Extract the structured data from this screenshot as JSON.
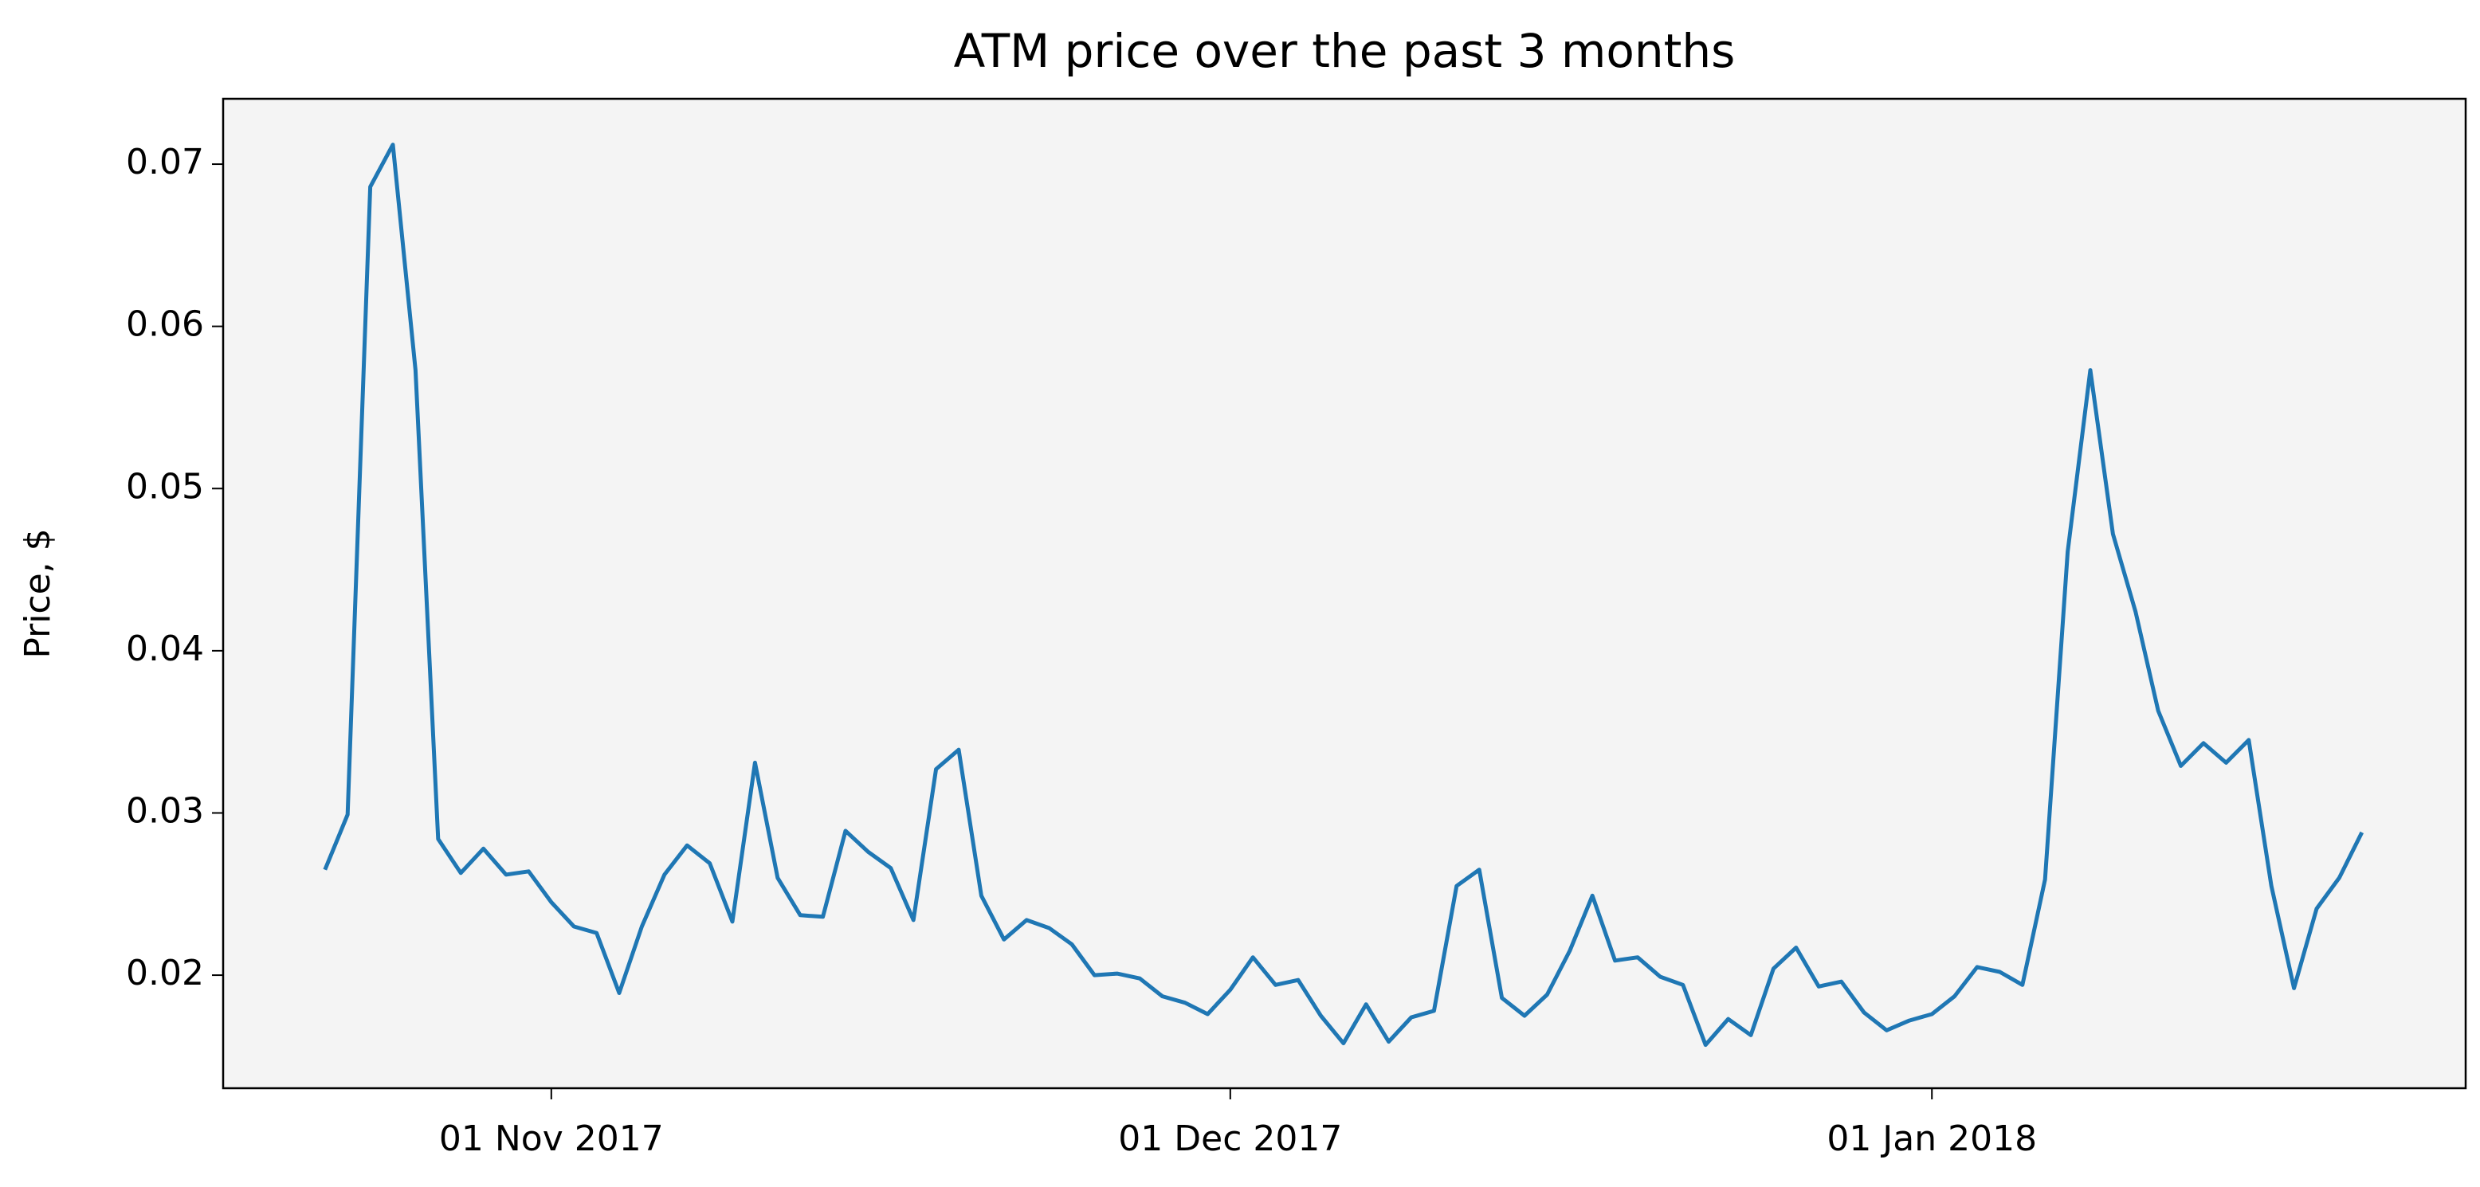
{
  "chart_data": {
    "type": "line",
    "title": "ATM price over the past 3 months",
    "y_label": "Price, $",
    "x": [
      "2017-10-22",
      "2017-10-23",
      "2017-10-24",
      "2017-10-25",
      "2017-10-26",
      "2017-10-27",
      "2017-10-28",
      "2017-10-29",
      "2017-10-30",
      "2017-10-31",
      "2017-11-01",
      "2017-11-02",
      "2017-11-03",
      "2017-11-04",
      "2017-11-05",
      "2017-11-06",
      "2017-11-07",
      "2017-11-08",
      "2017-11-09",
      "2017-11-10",
      "2017-11-11",
      "2017-11-12",
      "2017-11-13",
      "2017-11-14",
      "2017-11-15",
      "2017-11-16",
      "2017-11-17",
      "2017-11-18",
      "2017-11-19",
      "2017-11-20",
      "2017-11-21",
      "2017-11-22",
      "2017-11-23",
      "2017-11-24",
      "2017-11-25",
      "2017-11-26",
      "2017-11-27",
      "2017-11-28",
      "2017-11-29",
      "2017-11-30",
      "2017-12-01",
      "2017-12-02",
      "2017-12-03",
      "2017-12-04",
      "2017-12-05",
      "2017-12-06",
      "2017-12-07",
      "2017-12-08",
      "2017-12-09",
      "2017-12-10",
      "2017-12-11",
      "2017-12-12",
      "2017-12-13",
      "2017-12-14",
      "2017-12-15",
      "2017-12-16",
      "2017-12-17",
      "2017-12-18",
      "2017-12-19",
      "2017-12-20",
      "2017-12-21",
      "2017-12-22",
      "2017-12-23",
      "2017-12-24",
      "2017-12-25",
      "2017-12-26",
      "2017-12-27",
      "2017-12-28",
      "2017-12-29",
      "2017-12-30",
      "2017-12-31",
      "2018-01-01",
      "2018-01-02",
      "2018-01-03",
      "2018-01-04",
      "2018-01-05",
      "2018-01-06",
      "2018-01-07",
      "2018-01-08",
      "2018-01-09",
      "2018-01-10",
      "2018-01-11",
      "2018-01-12",
      "2018-01-13",
      "2018-01-14",
      "2018-01-15",
      "2018-01-16",
      "2018-01-17",
      "2018-01-18",
      "2018-01-19",
      "2018-01-20"
    ],
    "series": [
      {
        "name": "ATM",
        "color": "#1f77b4",
        "values": [
          0.0265,
          0.0299,
          0.0686,
          0.0712,
          0.0573,
          0.0284,
          0.0263,
          0.0278,
          0.0262,
          0.0264,
          0.0245,
          0.023,
          0.0226,
          0.0189,
          0.023,
          0.0262,
          0.028,
          0.0269,
          0.0233,
          0.0331,
          0.026,
          0.0237,
          0.0236,
          0.0289,
          0.0276,
          0.0266,
          0.0234,
          0.0327,
          0.0339,
          0.0249,
          0.0222,
          0.0234,
          0.0229,
          0.0219,
          0.02,
          0.0201,
          0.0198,
          0.0187,
          0.0183,
          0.0176,
          0.0191,
          0.0211,
          0.0194,
          0.0197,
          0.0175,
          0.0158,
          0.0182,
          0.0159,
          0.0174,
          0.0178,
          0.0255,
          0.0265,
          0.0186,
          0.0175,
          0.0188,
          0.0215,
          0.0249,
          0.0209,
          0.0211,
          0.0199,
          0.0194,
          0.0157,
          0.0173,
          0.0163,
          0.0204,
          0.0217,
          0.0193,
          0.0196,
          0.0177,
          0.0166,
          0.0172,
          0.0176,
          0.0187,
          0.0205,
          0.0202,
          0.0194,
          0.0259,
          0.0461,
          0.0573,
          0.0472,
          0.0424,
          0.0363,
          0.0329,
          0.0343,
          0.0331,
          0.0345,
          0.0255,
          0.0192,
          0.0241,
          0.026,
          0.0288
        ]
      }
    ],
    "xlim": [
      "2017-10-17T12:00",
      "2018-01-24T14:00"
    ],
    "xticks": [
      {
        "value": "2017-11-01",
        "label": "01 Nov 2017"
      },
      {
        "value": "2017-12-01",
        "label": "01 Dec 2017"
      },
      {
        "value": "2018-01-01",
        "label": "01 Jan 2018"
      }
    ],
    "ylim": [
      0.01303,
      0.07403
    ],
    "yticks": [
      0.02,
      0.03,
      0.04,
      0.05,
      0.06,
      0.07
    ],
    "grid": false,
    "background": "#f4f4f4"
  }
}
